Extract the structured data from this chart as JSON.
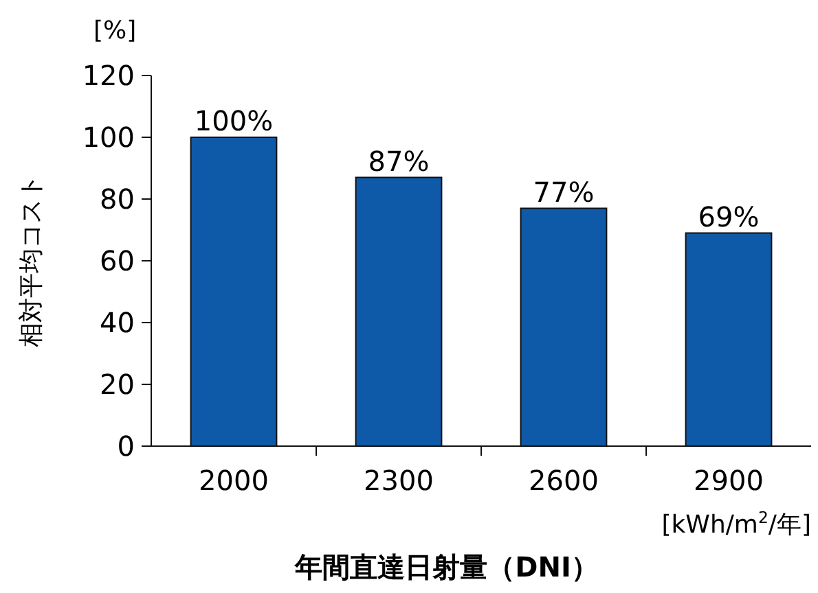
{
  "chart_data": {
    "type": "bar",
    "ylabel": "相対平均コスト",
    "xlabel": "年間直達日射量（DNI）",
    "categories": [
      "2000",
      "2300",
      "2600",
      "2900"
    ],
    "values": [
      100,
      87,
      77,
      69
    ],
    "value_labels": [
      "100%",
      "87%",
      "77%",
      "69%"
    ],
    "color": "#0f5aa8",
    "ylim": [
      0,
      120
    ],
    "yticks": [
      0,
      20,
      40,
      60,
      80,
      100,
      120
    ],
    "grid": false,
    "annotations": [
      "[%]",
      "[kWh/m$^{2}$/年]"
    ]
  }
}
